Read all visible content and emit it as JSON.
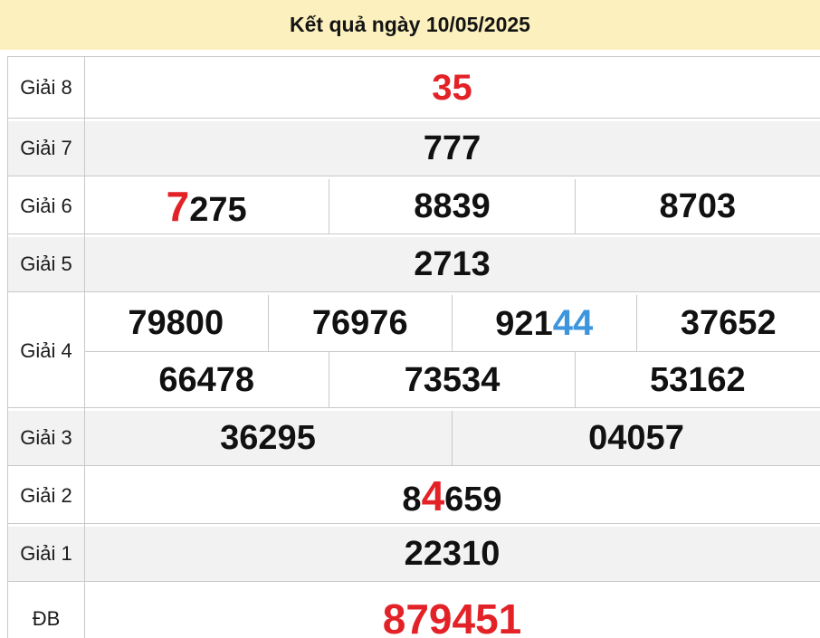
{
  "header": {
    "title": "Kết quả ngày 10/05/2025"
  },
  "colors": {
    "header_bg": "#fcf1be",
    "highlight_red": "#e32227",
    "highlight_blue": "#3d96dd",
    "alt_row_bg": "#f2f2f2",
    "border": "#c9c9c9",
    "number_text": "#111111"
  },
  "results": {
    "rows": [
      {
        "id": "giai-8",
        "label": "Giải 8",
        "shaded": false,
        "lines": [
          [
            [
              {
                "t": "35",
                "s": "red"
              }
            ]
          ]
        ]
      },
      {
        "id": "giai-7",
        "label": "Giải 7",
        "shaded": true,
        "lines": [
          [
            [
              {
                "t": "777",
                "s": "n"
              }
            ]
          ]
        ]
      },
      {
        "id": "giai-6",
        "label": "Giải 6",
        "shaded": false,
        "lines": [
          [
            [
              {
                "t": "7",
                "s": "red-big"
              },
              {
                "t": "275",
                "s": "n"
              }
            ],
            [
              {
                "t": "8839",
                "s": "n"
              }
            ],
            [
              {
                "t": "8703",
                "s": "n"
              }
            ]
          ]
        ]
      },
      {
        "id": "giai-5",
        "label": "Giải 5",
        "shaded": true,
        "lines": [
          [
            [
              {
                "t": "2713",
                "s": "n"
              }
            ]
          ]
        ]
      },
      {
        "id": "giai-4",
        "label": "Giải 4",
        "shaded": false,
        "lines": [
          [
            [
              {
                "t": "79800",
                "s": "n"
              }
            ],
            [
              {
                "t": "76976",
                "s": "n"
              }
            ],
            [
              {
                "t": "921",
                "s": "n"
              },
              {
                "t": "44",
                "s": "blue"
              }
            ],
            [
              {
                "t": "37652",
                "s": "n"
              }
            ]
          ],
          [
            [
              {
                "t": "66478",
                "s": "n"
              }
            ],
            [
              {
                "t": "73534",
                "s": "n"
              }
            ],
            [
              {
                "t": "53162",
                "s": "n"
              }
            ]
          ]
        ]
      },
      {
        "id": "giai-3",
        "label": "Giải 3",
        "shaded": true,
        "lines": [
          [
            [
              {
                "t": "36295",
                "s": "n"
              }
            ],
            [
              {
                "t": "04057",
                "s": "n"
              }
            ]
          ]
        ]
      },
      {
        "id": "giai-2",
        "label": "Giải 2",
        "shaded": false,
        "lines": [
          [
            [
              {
                "t": "8",
                "s": "n"
              },
              {
                "t": "4",
                "s": "red-big"
              },
              {
                "t": "659",
                "s": "n"
              }
            ]
          ]
        ]
      },
      {
        "id": "giai-1",
        "label": "Giải 1",
        "shaded": true,
        "lines": [
          [
            [
              {
                "t": "22310",
                "s": "n"
              }
            ]
          ]
        ]
      },
      {
        "id": "db",
        "label": "ĐB",
        "shaded": false,
        "lines": [
          [
            [
              {
                "t": "879451",
                "s": "red-xl"
              }
            ]
          ]
        ]
      }
    ]
  }
}
